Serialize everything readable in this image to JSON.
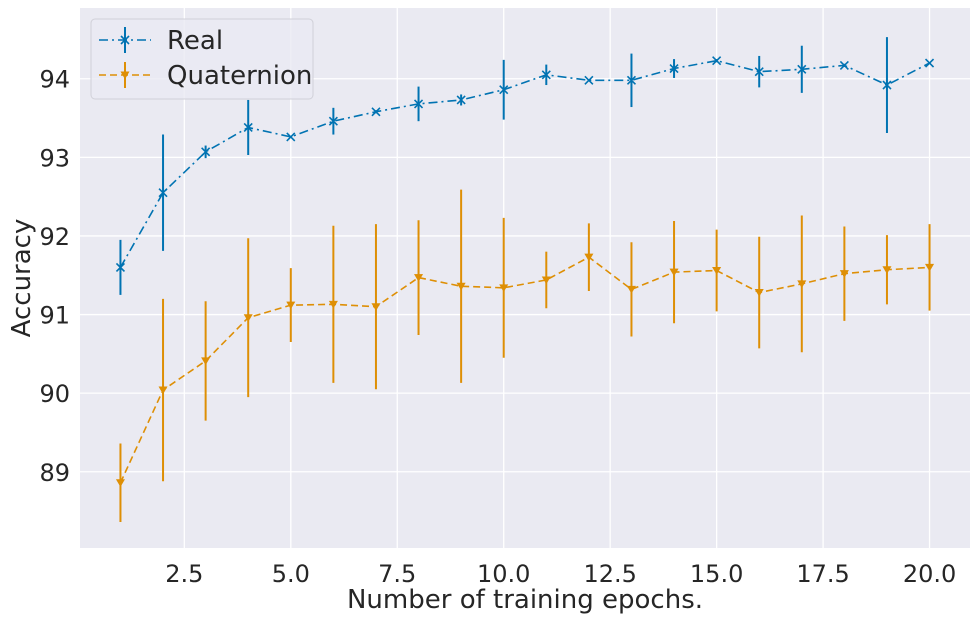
{
  "chart_data": {
    "type": "line",
    "title": "",
    "xlabel": "Number of training epochs.",
    "ylabel": "Accuracy",
    "xlim": [
      0.05,
      20.95
    ],
    "ylim": [
      88.03,
      94.9
    ],
    "xticks": [
      2.5,
      5.0,
      7.5,
      10.0,
      12.5,
      15.0,
      17.5,
      20.0
    ],
    "xtick_labels": [
      "2.5",
      "5.0",
      "7.5",
      "10.0",
      "12.5",
      "15.0",
      "17.5",
      "20.0"
    ],
    "yticks": [
      89,
      90,
      91,
      92,
      93,
      94
    ],
    "ytick_labels": [
      "89",
      "90",
      "91",
      "92",
      "93",
      "94"
    ],
    "grid": true,
    "legend_position": "top-left",
    "background_color": "#eaeaf2",
    "x": [
      1,
      2,
      3,
      4,
      5,
      6,
      7,
      8,
      9,
      10,
      11,
      12,
      13,
      14,
      15,
      16,
      17,
      18,
      19,
      20
    ],
    "series": [
      {
        "name": "Real",
        "color": "#0173b2",
        "linestyle": "dashdot",
        "marker": "x",
        "values": [
          91.6,
          92.55,
          93.07,
          93.38,
          93.26,
          93.46,
          93.58,
          93.68,
          93.73,
          93.86,
          94.05,
          93.98,
          93.98,
          94.13,
          94.23,
          94.09,
          94.12,
          94.17,
          93.92,
          94.2
        ],
        "errors": [
          0.35,
          0.74,
          0.08,
          0.35,
          0.01,
          0.17,
          0.02,
          0.22,
          0.07,
          0.38,
          0.13,
          0.01,
          0.34,
          0.12,
          0.02,
          0.2,
          0.3,
          0.02,
          0.61,
          0.01
        ]
      },
      {
        "name": "Quaternion",
        "color": "#de8f05",
        "linestyle": "dashed",
        "marker": "triangle-down",
        "values": [
          88.86,
          90.04,
          90.41,
          90.96,
          91.12,
          91.13,
          91.1,
          91.47,
          91.36,
          91.34,
          91.44,
          91.73,
          91.32,
          91.54,
          91.56,
          91.28,
          91.39,
          91.52,
          91.57,
          91.6
        ],
        "errors": [
          0.5,
          1.16,
          0.76,
          1.01,
          0.47,
          1.0,
          1.05,
          0.73,
          1.23,
          0.89,
          0.36,
          0.43,
          0.6,
          0.65,
          0.52,
          0.71,
          0.87,
          0.6,
          0.44,
          0.55
        ]
      }
    ]
  }
}
